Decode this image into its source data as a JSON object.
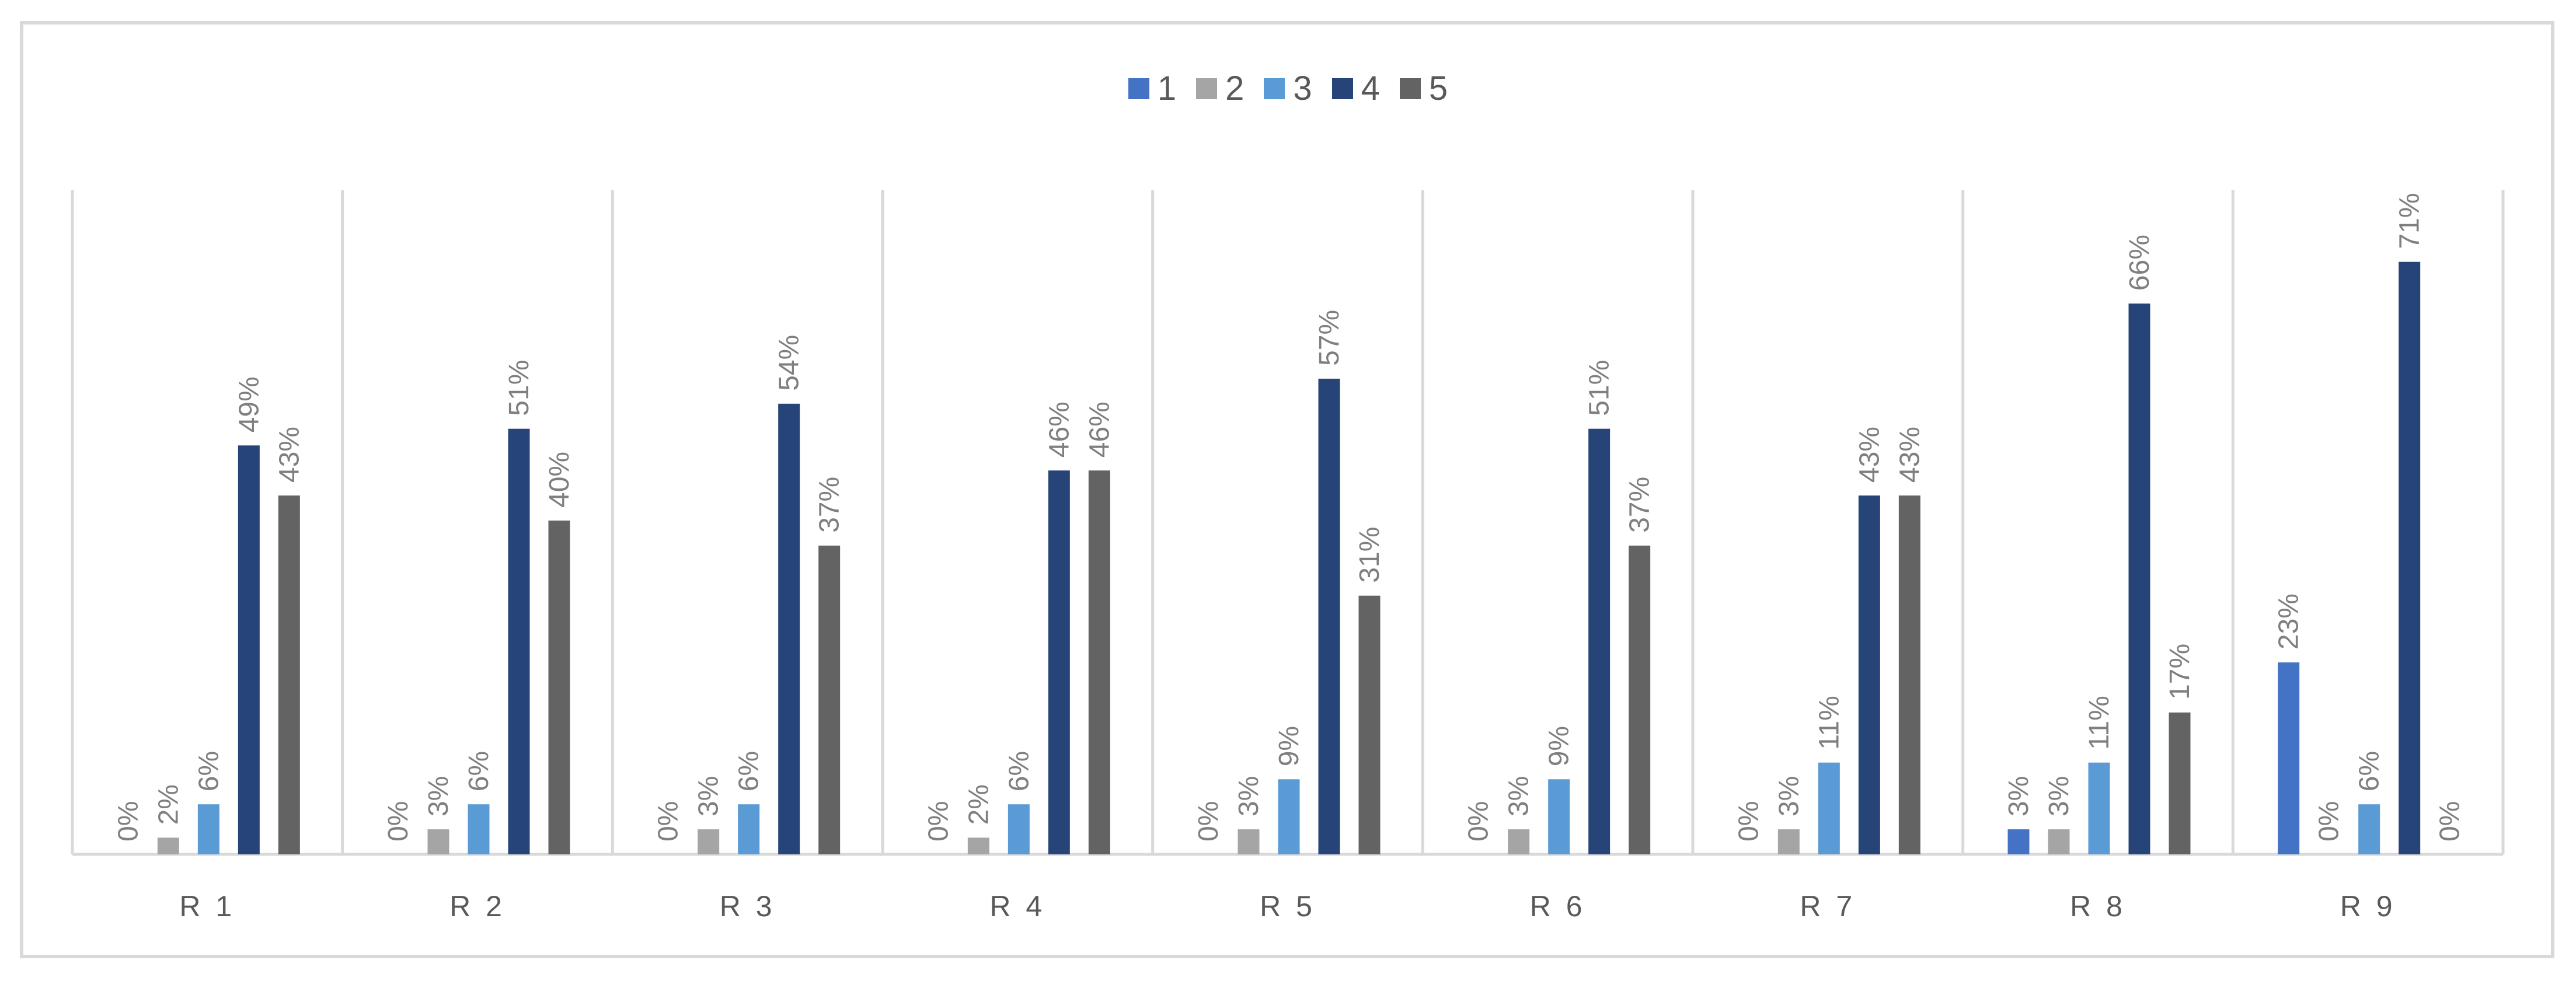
{
  "chart_data": {
    "type": "bar",
    "categories": [
      "R 1",
      "R 2",
      "R 3",
      "R 4",
      "R 5",
      "R 6",
      "R 7",
      "R 8",
      "R 9"
    ],
    "series": [
      {
        "name": "1",
        "color": "#4472c4",
        "values": [
          0,
          0,
          0,
          0,
          0,
          0,
          0,
          3,
          23
        ],
        "labels": [
          "0%",
          "0%",
          "0%",
          "0%",
          "0%",
          "0%",
          "0%",
          "3%",
          "23%"
        ]
      },
      {
        "name": "2",
        "color": "#a5a5a5",
        "values": [
          2,
          3,
          3,
          2,
          3,
          3,
          3,
          3,
          0
        ],
        "labels": [
          "2%",
          "3%",
          "3%",
          "2%",
          "3%",
          "3%",
          "3%",
          "3%",
          "0%"
        ]
      },
      {
        "name": "3",
        "color": "#5b9bd5",
        "values": [
          6,
          6,
          6,
          6,
          9,
          9,
          11,
          11,
          6
        ],
        "labels": [
          "6%",
          "6%",
          "6%",
          "6%",
          "9%",
          "9%",
          "11%",
          "11%",
          "6%"
        ]
      },
      {
        "name": "4",
        "color": "#264478",
        "values": [
          49,
          51,
          54,
          46,
          57,
          51,
          43,
          66,
          71
        ],
        "labels": [
          "49%",
          "51%",
          "54%",
          "46%",
          "57%",
          "51%",
          "43%",
          "66%",
          "71%"
        ]
      },
      {
        "name": "5",
        "color": "#636363",
        "values": [
          43,
          40,
          37,
          46,
          31,
          37,
          43,
          17,
          0
        ],
        "labels": [
          "43%",
          "40%",
          "37%",
          "46%",
          "31%",
          "37%",
          "43%",
          "17%",
          "0%"
        ]
      }
    ],
    "ylim": [
      0,
      80
    ],
    "legend_position": "top",
    "grid": "vertical category separators"
  }
}
